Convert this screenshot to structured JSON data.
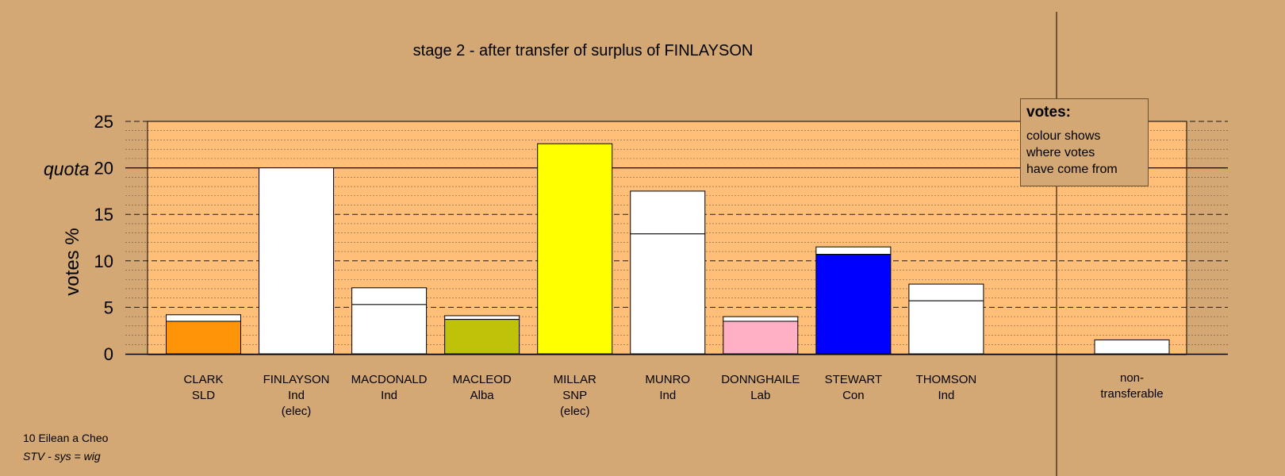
{
  "chart_data": {
    "type": "bar",
    "title": "stage 2 - after transfer of surplus of FINLAYSON",
    "ylabel": "votes %",
    "quota_label": "quota",
    "quota": 20,
    "ylim": [
      0,
      25
    ],
    "yticks": [
      0,
      5,
      10,
      15,
      20,
      25
    ],
    "grid": true,
    "candidates": [
      {
        "name": "CLARK",
        "party": "SLD",
        "note": "",
        "base": 3.5,
        "total": 4.2,
        "base_color": "#ff9408"
      },
      {
        "name": "FINLAYSON",
        "party": "Ind",
        "note": "(elec)",
        "base": 20.0,
        "total": 20.0,
        "base_color": "#ffffff"
      },
      {
        "name": "MACDONALD",
        "party": "Ind",
        "note": "",
        "base": 5.3,
        "total": 7.1,
        "base_color": "#ffffff"
      },
      {
        "name": "MACLEOD",
        "party": "Alba",
        "note": "",
        "base": 3.7,
        "total": 4.1,
        "base_color": "#bec30a"
      },
      {
        "name": "MILLAR",
        "party": "SNP",
        "note": "(elec)",
        "base": 22.6,
        "total": 22.6,
        "base_color": "#ffff00"
      },
      {
        "name": "MUNRO",
        "party": "Ind",
        "note": "",
        "base": 12.9,
        "total": 17.5,
        "base_color": "#ffffff"
      },
      {
        "name": "DONNGHAILE",
        "party": "Lab",
        "note": "",
        "base": 3.5,
        "total": 4.0,
        "base_color": "#ffb0c4"
      },
      {
        "name": "STEWART",
        "party": "Con",
        "note": "",
        "base": 10.7,
        "total": 11.5,
        "base_color": "#0000ff"
      },
      {
        "name": "THOMSON",
        "party": "Ind",
        "note": "",
        "base": 5.7,
        "total": 7.5,
        "base_color": "#ffffff"
      }
    ],
    "nontransferable": {
      "label_line1": "non-",
      "label_line2": "transferable",
      "value": 1.5
    }
  },
  "legend": {
    "title": "votes:",
    "lines": [
      "colour shows",
      "where votes",
      "have come from"
    ]
  },
  "footer": {
    "line1": "10 Eilean a Cheo",
    "line2": "STV - sys = wig"
  }
}
